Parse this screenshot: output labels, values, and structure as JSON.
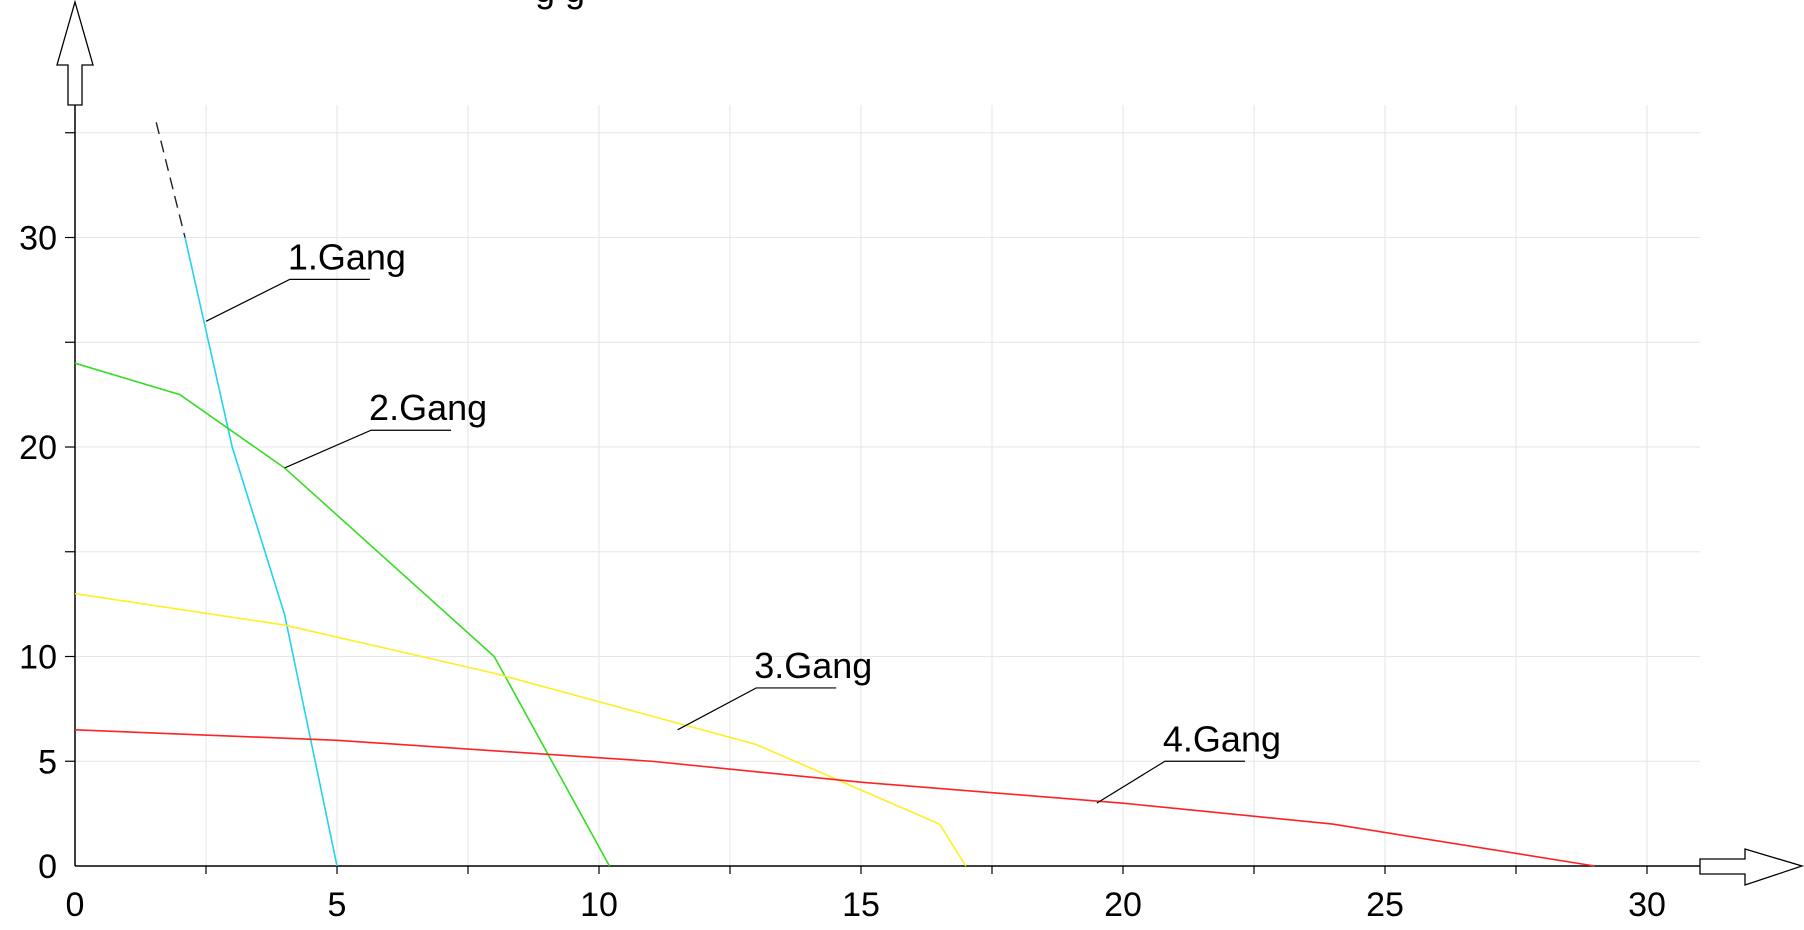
{
  "chart_data": {
    "type": "line",
    "title": "",
    "top_partial_text": "g g",
    "xlabel": "",
    "ylabel": "",
    "xlim": [
      0,
      31
    ],
    "ylim": [
      0,
      35
    ],
    "x_ticks": [
      0,
      5,
      10,
      15,
      20,
      25,
      30
    ],
    "y_ticks": [
      0,
      5,
      10,
      20,
      30
    ],
    "x_minor_step": 2.5,
    "y_minor_step": 5,
    "grid": true,
    "series": [
      {
        "name": "1.Gang",
        "color": "#22d3ee",
        "points": [
          [
            2.1,
            30
          ],
          [
            3.0,
            20
          ],
          [
            4.0,
            12
          ],
          [
            5.0,
            0
          ]
        ],
        "dashed_extension": [
          [
            1.55,
            35.5
          ],
          [
            2.1,
            30
          ]
        ],
        "annotation_point": [
          2.5,
          26
        ],
        "label_anchor": [
          4.1,
          28
        ]
      },
      {
        "name": "2.Gang",
        "color": "#33dd22",
        "points": [
          [
            0,
            24
          ],
          [
            2.0,
            22.5
          ],
          [
            4.0,
            19
          ],
          [
            8.0,
            10
          ],
          [
            10.2,
            0
          ]
        ],
        "annotation_point": [
          4.0,
          19
        ],
        "label_anchor": [
          5.65,
          20.8
        ]
      },
      {
        "name": "3.Gang",
        "color": "#ffee22",
        "points": [
          [
            0,
            13
          ],
          [
            4.0,
            11.5
          ],
          [
            8.0,
            9.2
          ],
          [
            13.0,
            5.8
          ],
          [
            16.5,
            2.0
          ],
          [
            17.0,
            0
          ]
        ],
        "annotation_point": [
          11.5,
          6.5
        ],
        "label_anchor": [
          13.0,
          8.5
        ]
      },
      {
        "name": "4.Gang",
        "color": "#ff2222",
        "points": [
          [
            0,
            6.5
          ],
          [
            5.0,
            6.0
          ],
          [
            11.0,
            5.0
          ],
          [
            15.0,
            4.0
          ],
          [
            20.0,
            3.0
          ],
          [
            24.0,
            2.0
          ],
          [
            29.0,
            0
          ]
        ],
        "annotation_point": [
          19.5,
          3.0
        ],
        "label_anchor": [
          20.8,
          5.0
        ]
      }
    ]
  }
}
